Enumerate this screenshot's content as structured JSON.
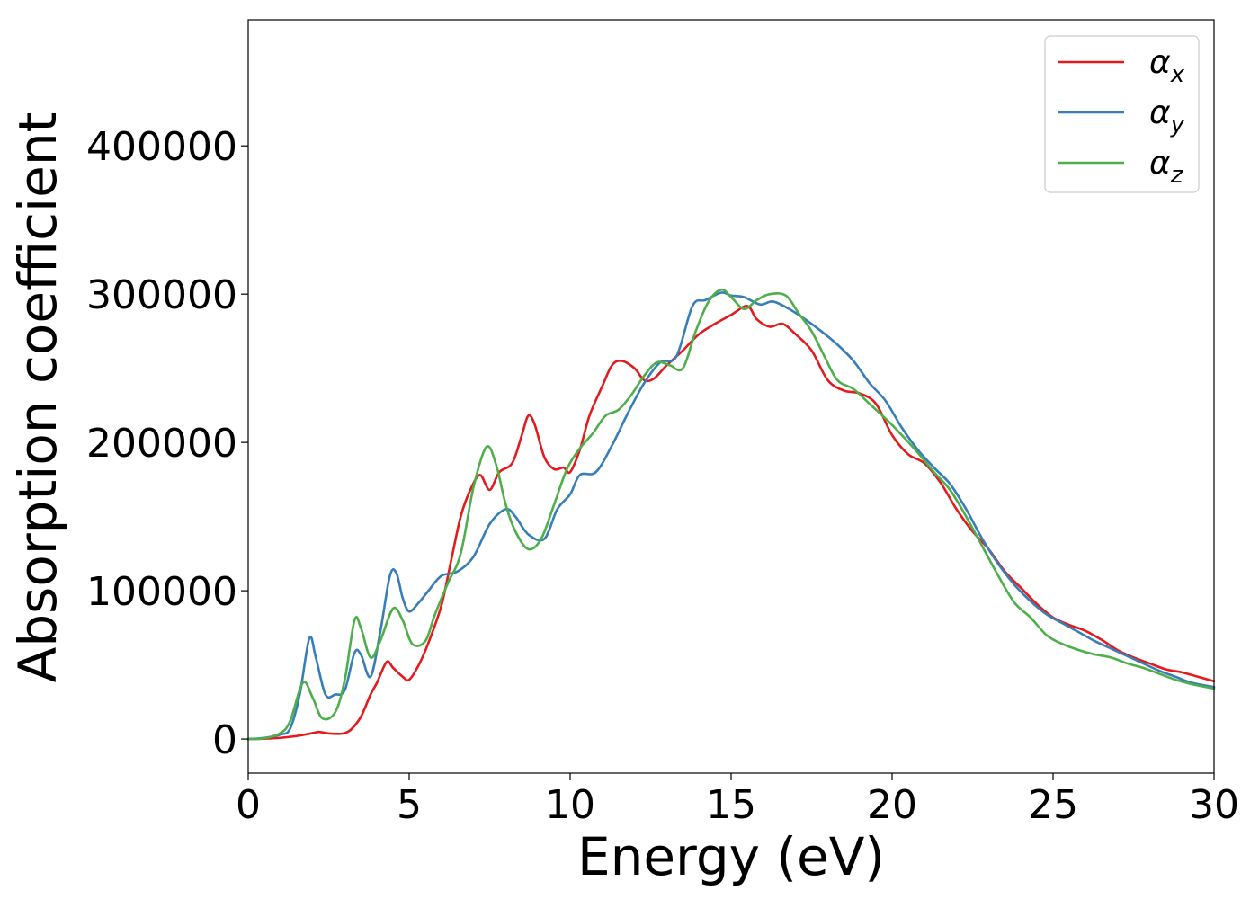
{
  "chart_data": {
    "type": "line",
    "xlabel": "Energy (eV)",
    "ylabel": "Absorption coefficient",
    "xlim": [
      0,
      30
    ],
    "ylim": [
      -23000,
      485000
    ],
    "xticks": [
      0,
      5,
      10,
      15,
      20,
      25,
      30
    ],
    "yticks": [
      0,
      100000,
      200000,
      300000,
      400000
    ],
    "grid": false,
    "legend_position": "top-right",
    "series": [
      {
        "name": "αx",
        "base": "α",
        "sub": "x",
        "color": "#e41a1c",
        "points": [
          [
            0,
            0
          ],
          [
            0.5,
            200
          ],
          [
            1,
            800
          ],
          [
            1.5,
            2000
          ],
          [
            2,
            4000
          ],
          [
            2.2,
            4800
          ],
          [
            2.5,
            3800
          ],
          [
            2.8,
            3500
          ],
          [
            3,
            4000
          ],
          [
            3.2,
            6500
          ],
          [
            3.5,
            15000
          ],
          [
            3.8,
            30000
          ],
          [
            4,
            38000
          ],
          [
            4.3,
            52000
          ],
          [
            4.5,
            48000
          ],
          [
            4.8,
            42000
          ],
          [
            5,
            40000
          ],
          [
            5.3,
            50000
          ],
          [
            5.6,
            65000
          ],
          [
            6,
            90000
          ],
          [
            6.3,
            120000
          ],
          [
            6.6,
            150000
          ],
          [
            6.9,
            168000
          ],
          [
            7.2,
            178000
          ],
          [
            7.5,
            168000
          ],
          [
            7.8,
            180000
          ],
          [
            8.2,
            186000
          ],
          [
            8.5,
            205000
          ],
          [
            8.7,
            218000
          ],
          [
            8.9,
            212000
          ],
          [
            9.2,
            190000
          ],
          [
            9.5,
            182000
          ],
          [
            9.8,
            183000
          ],
          [
            10,
            180000
          ],
          [
            10.3,
            195000
          ],
          [
            10.6,
            218000
          ],
          [
            11,
            238000
          ],
          [
            11.3,
            252000
          ],
          [
            11.6,
            255000
          ],
          [
            12,
            250000
          ],
          [
            12.3,
            242000
          ],
          [
            12.6,
            243000
          ],
          [
            13,
            252000
          ],
          [
            13.5,
            262000
          ],
          [
            14,
            273000
          ],
          [
            14.5,
            280000
          ],
          [
            15,
            286000
          ],
          [
            15.5,
            292000
          ],
          [
            15.8,
            283000
          ],
          [
            16.2,
            278000
          ],
          [
            16.6,
            280000
          ],
          [
            17,
            273000
          ],
          [
            17.5,
            262000
          ],
          [
            18,
            242000
          ],
          [
            18.5,
            235000
          ],
          [
            19,
            233000
          ],
          [
            19.5,
            226000
          ],
          [
            20,
            205000
          ],
          [
            20.5,
            192000
          ],
          [
            21,
            186000
          ],
          [
            21.5,
            173000
          ],
          [
            22,
            155000
          ],
          [
            22.5,
            140000
          ],
          [
            23,
            128000
          ],
          [
            23.5,
            113000
          ],
          [
            24,
            102000
          ],
          [
            24.5,
            91000
          ],
          [
            25,
            82000
          ],
          [
            25.5,
            77000
          ],
          [
            26,
            73000
          ],
          [
            26.5,
            67000
          ],
          [
            27,
            60000
          ],
          [
            27.5,
            55000
          ],
          [
            28,
            51000
          ],
          [
            28.5,
            47000
          ],
          [
            29,
            45000
          ],
          [
            29.5,
            42000
          ],
          [
            30,
            39000
          ]
        ]
      },
      {
        "name": "αy",
        "base": "α",
        "sub": "y",
        "color": "#377eb8",
        "points": [
          [
            0,
            0
          ],
          [
            0.5,
            800
          ],
          [
            1,
            3000
          ],
          [
            1.3,
            7000
          ],
          [
            1.6,
            30000
          ],
          [
            1.9,
            68000
          ],
          [
            2.1,
            55000
          ],
          [
            2.4,
            30000
          ],
          [
            2.7,
            30000
          ],
          [
            3,
            33000
          ],
          [
            3.3,
            58000
          ],
          [
            3.5,
            57000
          ],
          [
            3.8,
            42000
          ],
          [
            4.1,
            72000
          ],
          [
            4.4,
            110000
          ],
          [
            4.6,
            112000
          ],
          [
            4.8,
            95000
          ],
          [
            5,
            86000
          ],
          [
            5.3,
            92000
          ],
          [
            5.6,
            100000
          ],
          [
            6,
            110000
          ],
          [
            6.5,
            113000
          ],
          [
            7,
            123000
          ],
          [
            7.5,
            145000
          ],
          [
            8,
            155000
          ],
          [
            8.3,
            150000
          ],
          [
            8.7,
            138000
          ],
          [
            9.2,
            135000
          ],
          [
            9.6,
            155000
          ],
          [
            10,
            165000
          ],
          [
            10.3,
            178000
          ],
          [
            10.8,
            180000
          ],
          [
            11.3,
            198000
          ],
          [
            11.8,
            220000
          ],
          [
            12.3,
            240000
          ],
          [
            12.8,
            254000
          ],
          [
            13.3,
            258000
          ],
          [
            13.8,
            292000
          ],
          [
            14.2,
            296000
          ],
          [
            14.7,
            301000
          ],
          [
            15,
            299000
          ],
          [
            15.4,
            298000
          ],
          [
            15.9,
            293000
          ],
          [
            16.3,
            295000
          ],
          [
            16.8,
            290000
          ],
          [
            17.3,
            283000
          ],
          [
            17.8,
            275000
          ],
          [
            18.3,
            266000
          ],
          [
            18.8,
            255000
          ],
          [
            19.3,
            240000
          ],
          [
            19.8,
            228000
          ],
          [
            20.3,
            210000
          ],
          [
            20.8,
            195000
          ],
          [
            21.3,
            183000
          ],
          [
            21.8,
            172000
          ],
          [
            22.3,
            155000
          ],
          [
            22.8,
            135000
          ],
          [
            23.3,
            118000
          ],
          [
            23.8,
            104000
          ],
          [
            24.3,
            93000
          ],
          [
            24.8,
            84000
          ],
          [
            25.3,
            78000
          ],
          [
            25.8,
            72000
          ],
          [
            26.3,
            66000
          ],
          [
            26.8,
            61000
          ],
          [
            27.3,
            56000
          ],
          [
            27.8,
            51000
          ],
          [
            28.3,
            46000
          ],
          [
            28.8,
            42000
          ],
          [
            29.3,
            38000
          ],
          [
            30,
            35000
          ]
        ]
      },
      {
        "name": "αz",
        "base": "α",
        "sub": "z",
        "color": "#4daf4a",
        "points": [
          [
            0,
            0
          ],
          [
            0.5,
            500
          ],
          [
            1,
            4000
          ],
          [
            1.3,
            12000
          ],
          [
            1.7,
            38000
          ],
          [
            2,
            28000
          ],
          [
            2.3,
            14000
          ],
          [
            2.7,
            18000
          ],
          [
            3,
            40000
          ],
          [
            3.3,
            80000
          ],
          [
            3.5,
            75000
          ],
          [
            3.8,
            55000
          ],
          [
            4.1,
            66000
          ],
          [
            4.5,
            88000
          ],
          [
            4.8,
            80000
          ],
          [
            5.1,
            64000
          ],
          [
            5.5,
            66000
          ],
          [
            5.8,
            84000
          ],
          [
            6.2,
            105000
          ],
          [
            6.6,
            125000
          ],
          [
            7,
            170000
          ],
          [
            7.4,
            197000
          ],
          [
            7.7,
            185000
          ],
          [
            8,
            158000
          ],
          [
            8.3,
            140000
          ],
          [
            8.7,
            128000
          ],
          [
            9.1,
            135000
          ],
          [
            9.5,
            158000
          ],
          [
            9.9,
            182000
          ],
          [
            10.3,
            196000
          ],
          [
            10.7,
            206000
          ],
          [
            11.1,
            218000
          ],
          [
            11.5,
            222000
          ],
          [
            11.9,
            232000
          ],
          [
            12.3,
            245000
          ],
          [
            12.7,
            254000
          ],
          [
            13.1,
            252000
          ],
          [
            13.5,
            250000
          ],
          [
            13.9,
            275000
          ],
          [
            14.3,
            295000
          ],
          [
            14.7,
            303000
          ],
          [
            15,
            298000
          ],
          [
            15.4,
            290000
          ],
          [
            15.8,
            296000
          ],
          [
            16.2,
            300000
          ],
          [
            16.7,
            299000
          ],
          [
            17.1,
            287000
          ],
          [
            17.5,
            275000
          ],
          [
            17.9,
            258000
          ],
          [
            18.3,
            242000
          ],
          [
            18.8,
            236000
          ],
          [
            19.3,
            226000
          ],
          [
            19.8,
            216000
          ],
          [
            20.3,
            205000
          ],
          [
            20.8,
            193000
          ],
          [
            21.3,
            180000
          ],
          [
            21.8,
            168000
          ],
          [
            22.3,
            150000
          ],
          [
            22.8,
            130000
          ],
          [
            23.3,
            110000
          ],
          [
            23.8,
            92000
          ],
          [
            24.3,
            82000
          ],
          [
            24.8,
            70000
          ],
          [
            25.3,
            64000
          ],
          [
            25.8,
            60000
          ],
          [
            26.3,
            57000
          ],
          [
            26.8,
            55000
          ],
          [
            27.3,
            51000
          ],
          [
            27.8,
            48000
          ],
          [
            28.3,
            44000
          ],
          [
            28.8,
            40000
          ],
          [
            29.3,
            37000
          ],
          [
            30,
            34000
          ]
        ]
      }
    ]
  }
}
